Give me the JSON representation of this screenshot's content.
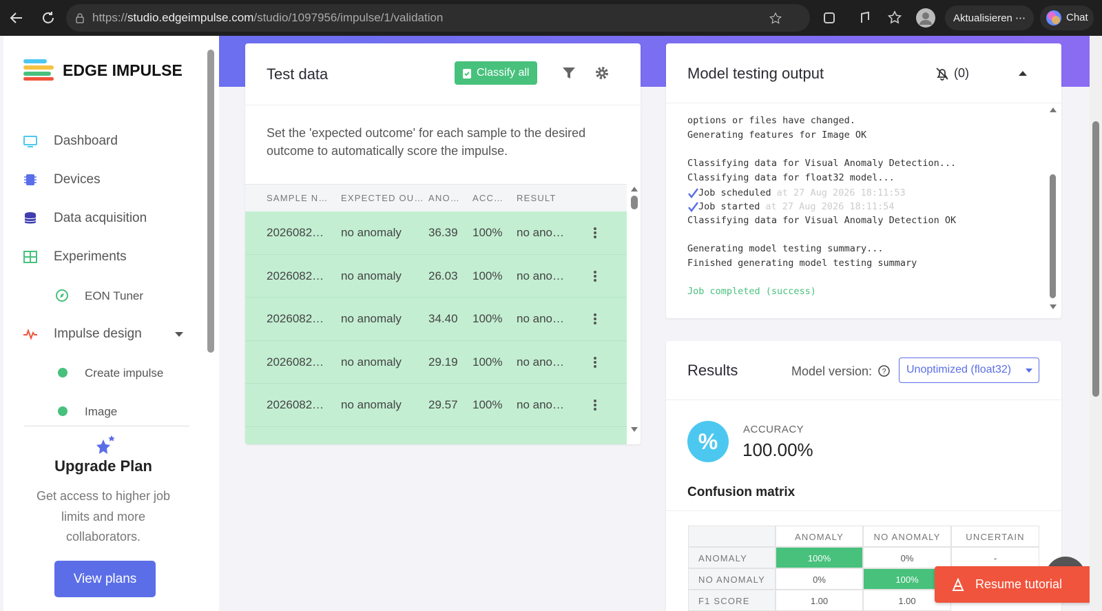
{
  "browser": {
    "url_scheme": "https://",
    "url_host": "studio.edgeimpulse.com",
    "url_path": "/studio/1097956/impulse/1/validation",
    "update_button": "Aktualisieren",
    "chat_button": "Chat"
  },
  "sidebar": {
    "logo": "EDGE IMPULSE",
    "nav": [
      {
        "label": "Dashboard"
      },
      {
        "label": "Devices"
      },
      {
        "label": "Data acquisition"
      },
      {
        "label": "Experiments",
        "children": [
          "EON Tuner"
        ]
      },
      {
        "label": "Impulse design",
        "children": [
          "Create impulse",
          "Image"
        ]
      }
    ],
    "upgrade": {
      "title": "Upgrade Plan",
      "text": "Get access to higher job limits and more collaborators.",
      "button": "View plans"
    }
  },
  "test_data": {
    "title": "Test data",
    "classify_button": "Classify all",
    "description": "Set the 'expected outcome' for each sample to the desired outcome to automatically score the impulse.",
    "columns": [
      "SAMPLE N…",
      "EXPECTED OU…",
      "ANO…",
      "ACC…",
      "RESULT"
    ],
    "rows": [
      [
        "2026082…",
        "no anomaly",
        "36.39",
        "100%",
        "no ano…"
      ],
      [
        "2026082…",
        "no anomaly",
        "26.03",
        "100%",
        "no ano…"
      ],
      [
        "2026082…",
        "no anomaly",
        "34.40",
        "100%",
        "no ano…"
      ],
      [
        "2026082…",
        "no anomaly",
        "29.19",
        "100%",
        "no ano…"
      ],
      [
        "2026082…",
        "no anomaly",
        "29.57",
        "100%",
        "no ano…"
      ]
    ]
  },
  "model_testing_output": {
    "title": "Model testing output",
    "notifications": "(0)",
    "log": [
      [
        "options or files have changed.",
        "Generating features for Image OK"
      ],
      [
        "Classifying data for Visual Anomaly Detection...",
        "Classifying data for float32 model...",
        {
          "text": "Job scheduled",
          "time": "at 27 Aug 2026 18:11:53"
        },
        {
          "text": "Job started",
          "time": "at 27 Aug 2026 18:11:54"
        },
        "Classifying data for Visual Anomaly Detection OK"
      ],
      [
        "Generating model testing summary...",
        "Finished generating model testing summary"
      ]
    ],
    "status": "Job completed (success)"
  },
  "results": {
    "title": "Results",
    "model_version_label": "Model version:",
    "model_version": "Unoptimized (float32)",
    "accuracy_label": "ACCURACY",
    "accuracy": "100.00%",
    "confusion_title": "Confusion matrix",
    "matrix_header": [
      "ANOMALY",
      "NO ANOMALY",
      "UNCERTAIN"
    ],
    "matrix_rows": [
      {
        "label": "ANOMALY",
        "cells": [
          "100%",
          "0%",
          "-"
        ]
      },
      {
        "label": "NO ANOMALY",
        "cells": [
          "0%",
          "100%"
        ]
      },
      {
        "label": "F1 SCORE",
        "cells": [
          "1.00",
          "1.00"
        ]
      }
    ]
  },
  "resume_tutorial": "Resume tutorial"
}
